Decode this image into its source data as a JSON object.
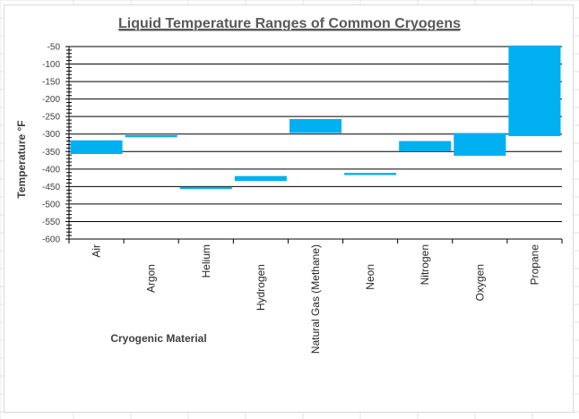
{
  "colors": {
    "bar": "#00b0f0",
    "gridline": "#000000",
    "sheet_grid": "#e3e3e3",
    "title": "#595959",
    "axis_text": "#404040"
  },
  "chart_data": {
    "type": "bar",
    "subtype": "floating-range",
    "title": "Liquid Temperature Ranges of Common Cryogens",
    "xlabel": "Cryogenic Material",
    "ylabel": "Temperature °F",
    "ylim": [
      -600,
      -50
    ],
    "yticks": [
      -50,
      -100,
      -150,
      -200,
      -250,
      -300,
      -350,
      -400,
      -450,
      -500,
      -550,
      -600
    ],
    "grid": true,
    "legend": "none",
    "categories": [
      "Air",
      "Argon",
      "Helium",
      "Hydrogen",
      "Natural Gas (Methane)",
      "Neon",
      "Nitrogen",
      "Oxygen",
      "Propane"
    ],
    "series": [
      {
        "low": [
          -357,
          -309,
          -457,
          -434,
          -297,
          -417,
          -349,
          -362,
          -306
        ],
        "high": [
          -318,
          -303,
          -451,
          -420,
          -257,
          -411,
          -320,
          -297,
          -47
        ]
      }
    ]
  }
}
